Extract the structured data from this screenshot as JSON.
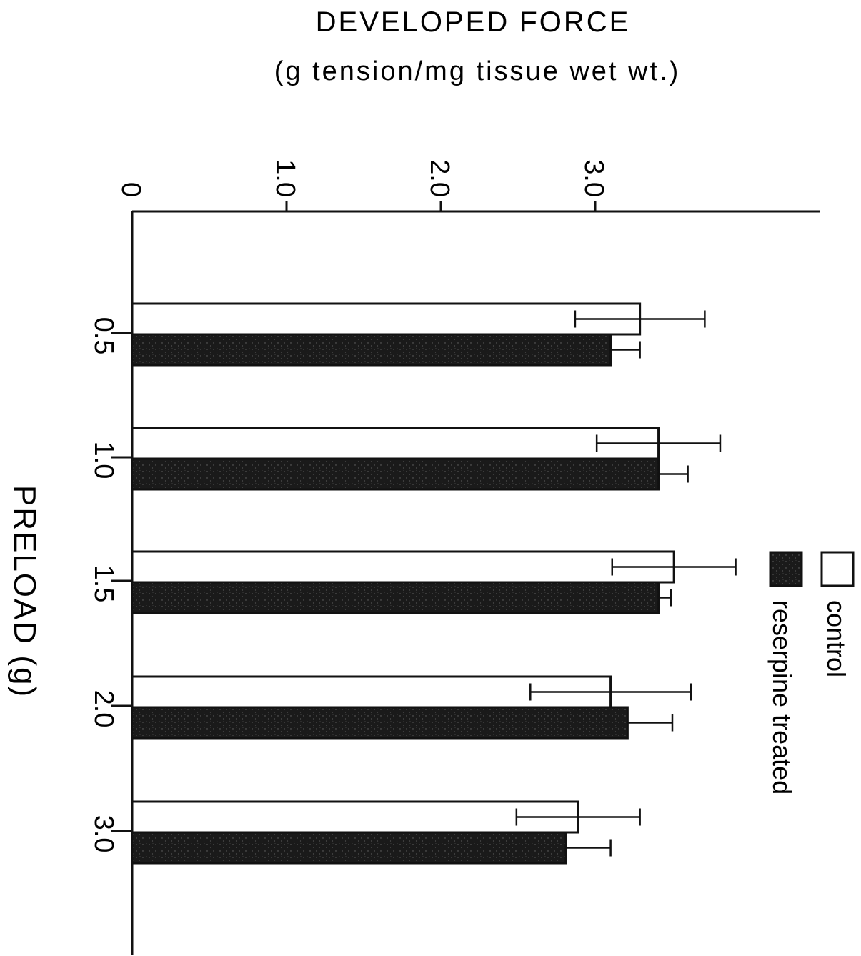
{
  "chart_data": {
    "type": "bar",
    "orientation": "rotated",
    "title": "DEVELOPED FORCE",
    "subtitle": "(g tension/mg tissue wet wt.)",
    "xlabel": "PRELOAD (g)",
    "ylabel": "",
    "categories": [
      "0.5",
      "1.0",
      "1.5",
      "2.0",
      "3.0"
    ],
    "y_ticks": [
      "0",
      "1.0",
      "2.0",
      "3.0"
    ],
    "ylim": [
      0,
      4.4
    ],
    "legend_position": "right",
    "series": [
      {
        "name": "control",
        "color": "#ffffff",
        "values": [
          3.29,
          3.41,
          3.51,
          3.1,
          2.89
        ],
        "errors": [
          0.42,
          0.4,
          0.4,
          0.52,
          0.4
        ]
      },
      {
        "name": "reserpine treated",
        "color": "#1a1a1a",
        "values": [
          3.1,
          3.41,
          3.41,
          3.21,
          2.81
        ],
        "errors": [
          0.19,
          0.19,
          0.08,
          0.29,
          0.29
        ]
      }
    ]
  }
}
